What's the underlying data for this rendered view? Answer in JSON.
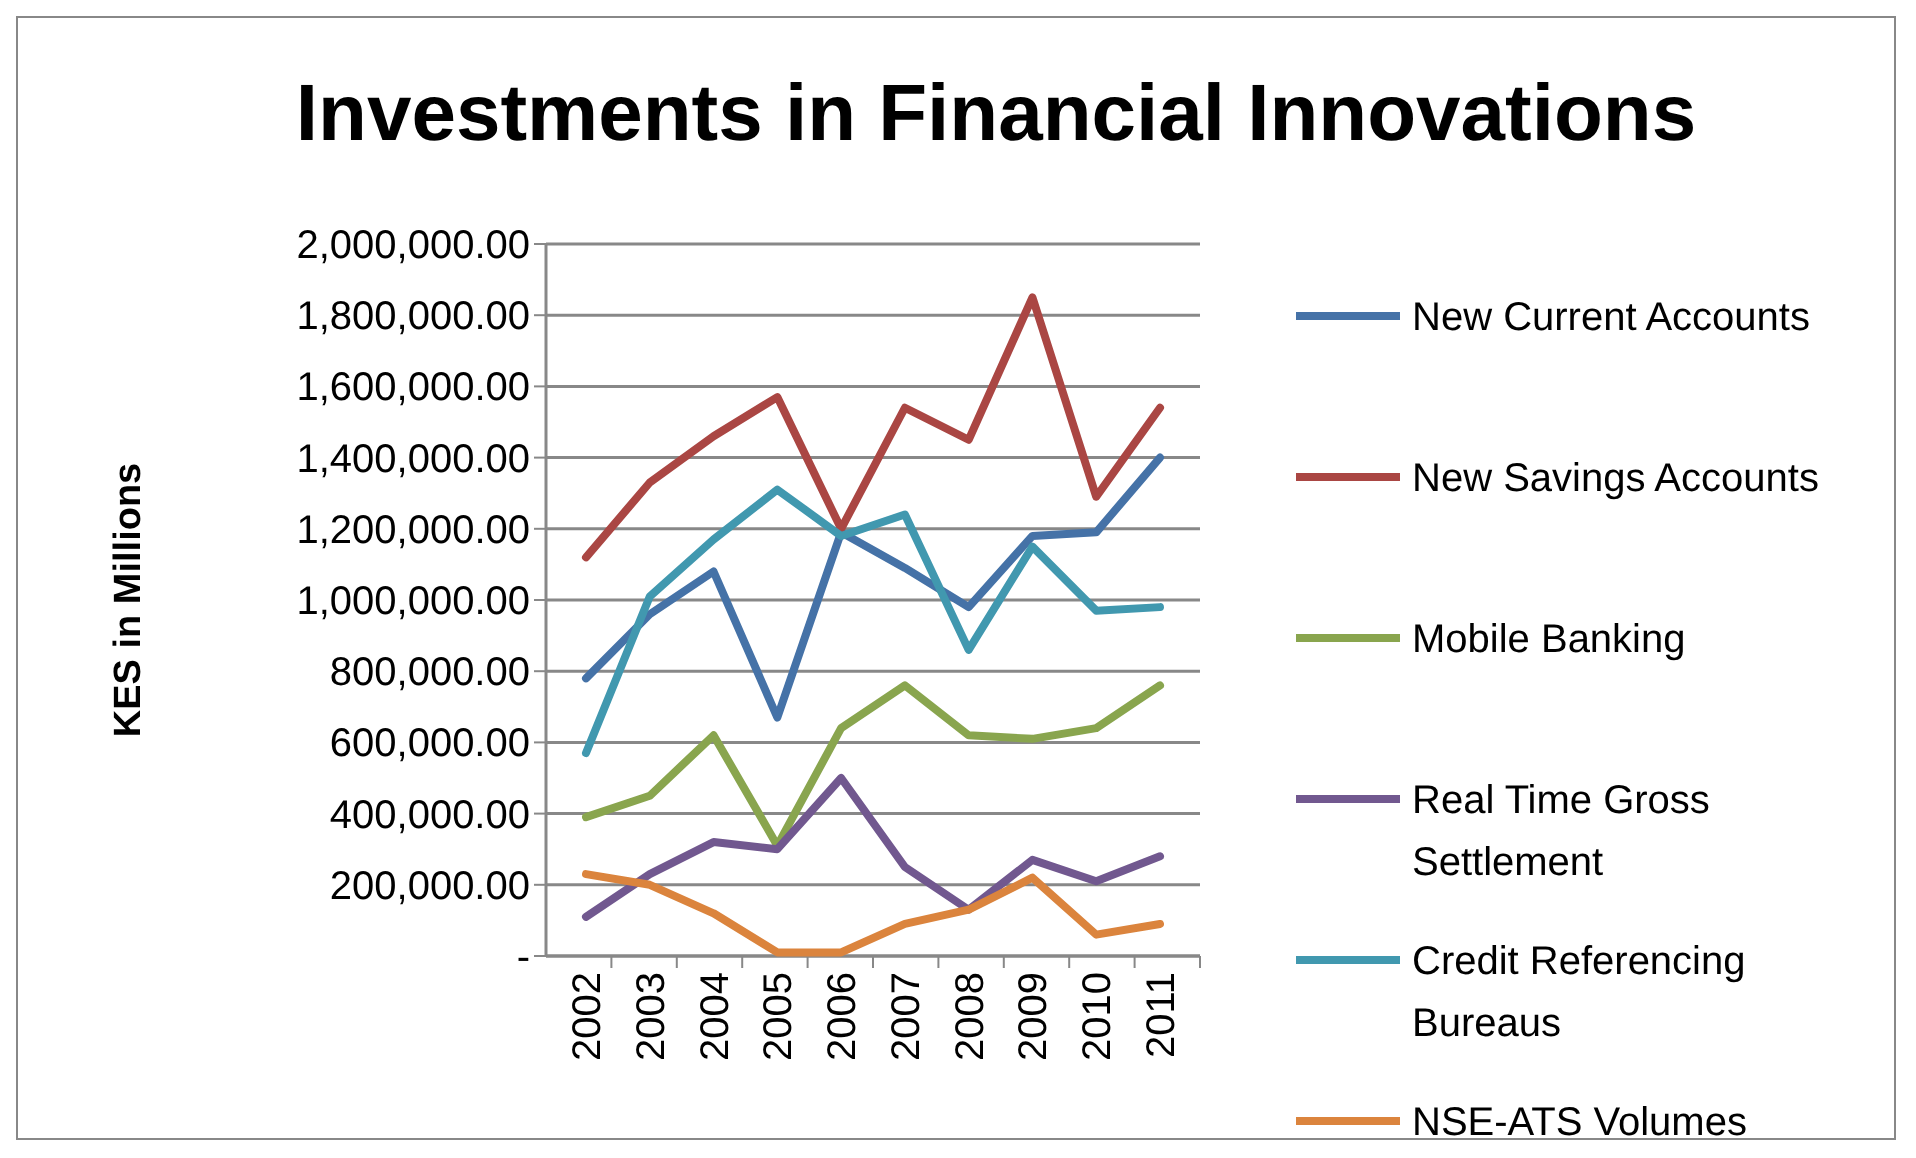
{
  "chart_data": {
    "type": "line",
    "title": "Investments in Financial Innovations",
    "ylabel": "KES in Millions",
    "categories": [
      "2002",
      "2003",
      "2004",
      "2005",
      "2006",
      "2007",
      "2008",
      "2009",
      "2010",
      "2011"
    ],
    "series": [
      {
        "name": "New Current Accounts",
        "color": "#4572a7",
        "values": [
          780000,
          960000,
          1080000,
          670000,
          1190000,
          1090000,
          980000,
          1180000,
          1190000,
          1400000
        ]
      },
      {
        "name": "New Savings Accounts",
        "color": "#aa4643",
        "values": [
          1120000,
          1330000,
          1460000,
          1570000,
          1200000,
          1540000,
          1450000,
          1850000,
          1290000,
          1540000
        ]
      },
      {
        "name": "Mobile Banking",
        "color": "#89a54e",
        "values": [
          390000,
          450000,
          620000,
          310000,
          640000,
          760000,
          620000,
          610000,
          640000,
          760000
        ]
      },
      {
        "name": "Real Time Gross Settlement",
        "color": "#71588f",
        "values": [
          110000,
          230000,
          320000,
          300000,
          500000,
          250000,
          130000,
          270000,
          210000,
          280000
        ]
      },
      {
        "name": "Credit Referencing Bureaus",
        "color": "#4198af",
        "values": [
          570000,
          1010000,
          1170000,
          1310000,
          1180000,
          1240000,
          860000,
          1150000,
          970000,
          980000
        ]
      },
      {
        "name": "NSE-ATS Volumes",
        "color": "#db843d",
        "values": [
          230000,
          200000,
          120000,
          10000,
          10000,
          90000,
          130000,
          220000,
          60000,
          90000
        ]
      }
    ],
    "ylim": [
      0,
      2000000
    ],
    "yticks": [
      {
        "value": 0,
        "label": "-"
      },
      {
        "value": 200000,
        "label": "200,000.00"
      },
      {
        "value": 400000,
        "label": "400,000.00"
      },
      {
        "value": 600000,
        "label": "600,000.00"
      },
      {
        "value": 800000,
        "label": "800,000.00"
      },
      {
        "value": 1000000,
        "label": "1,000,000.00"
      },
      {
        "value": 1200000,
        "label": "1,200,000.00"
      },
      {
        "value": 1400000,
        "label": "1,400,000.00"
      },
      {
        "value": 1600000,
        "label": "1,600,000.00"
      },
      {
        "value": 1800000,
        "label": "1,800,000.00"
      },
      {
        "value": 2000000,
        "label": "2,000,000.00"
      }
    ],
    "grid": "y",
    "legend": "right",
    "marker": "none",
    "line_style": "solid"
  }
}
